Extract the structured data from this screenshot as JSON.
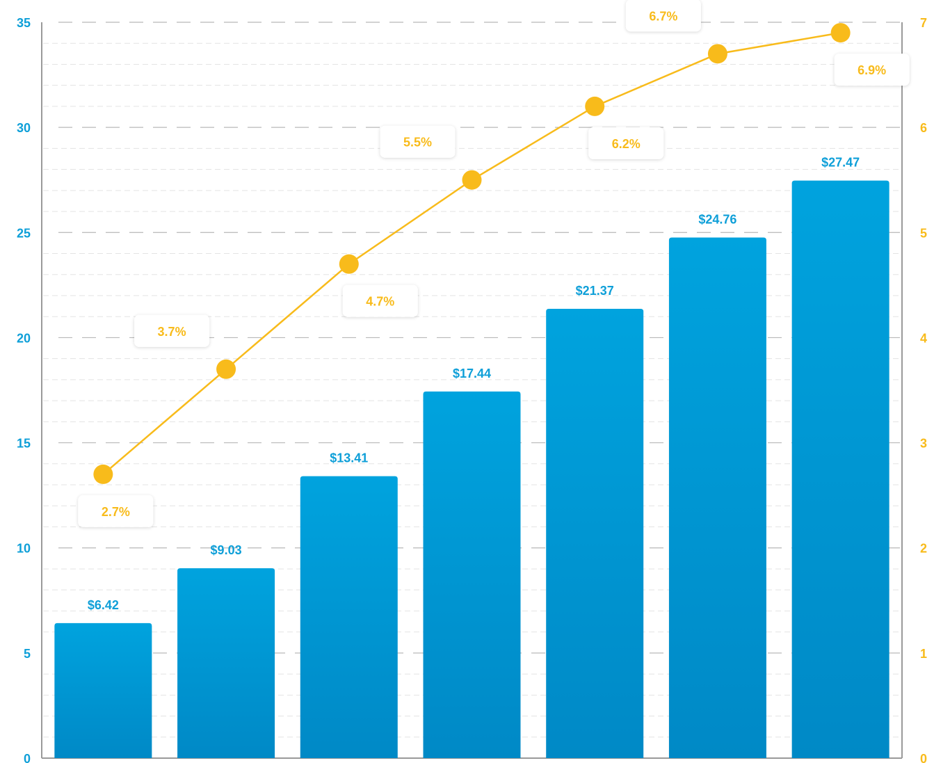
{
  "chart_data": {
    "type": "bar",
    "title": "",
    "xlabel": "",
    "ylabel": "",
    "y2label": "",
    "grid": true,
    "ylim": [
      0,
      35
    ],
    "y2lim": [
      0,
      7
    ],
    "yticks": [
      "0",
      "5",
      "10",
      "15",
      "20",
      "25",
      "30",
      "35"
    ],
    "y2ticks": [
      "0",
      "1",
      "2",
      "3",
      "4",
      "5",
      "6",
      "7"
    ],
    "series": [
      {
        "type": "bar",
        "axis": "left",
        "values": [
          6.42,
          9.03,
          13.41,
          17.44,
          21.37,
          24.76,
          27.47
        ],
        "labels": [
          "$6.42",
          "$9.03",
          "$13.41",
          "$17.44",
          "$21.37",
          "$24.76",
          "$27.47"
        ]
      },
      {
        "type": "line",
        "axis": "right",
        "values": [
          2.7,
          3.7,
          4.7,
          5.5,
          6.2,
          6.7,
          6.9
        ],
        "labels": [
          "2.7%",
          "3.7%",
          "4.7%",
          "5.5%",
          "6.2%",
          "6.7%",
          "6.9%"
        ],
        "label_side": [
          "below",
          "above",
          "below",
          "above",
          "below",
          "above",
          "below"
        ]
      }
    ],
    "colors": {
      "bar_top": "#00a3de",
      "bar_bottom": "#0089c6",
      "bar_label": "#0e9fd8",
      "line": "#f8bb1b",
      "line_label": "#f8bb1b",
      "left_axis_text": "#0e9fd8",
      "right_axis_text": "#f8bb1b",
      "axis_line": "#9a9a9a",
      "grid_major": "#b8b8b8",
      "grid_minor": "#e3e3e3"
    }
  }
}
